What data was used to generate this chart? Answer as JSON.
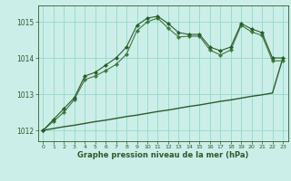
{
  "title": "Graphe pression niveau de la mer (hPa)",
  "bg_color": "#cceee8",
  "grid_color": "#99ddcc",
  "line_color_dark": "#2d5a2d",
  "line_color_mid": "#3a7a3a",
  "line_color_light": "#4a9a4a",
  "xlim": [
    -0.5,
    23.5
  ],
  "ylim": [
    1011.7,
    1015.45
  ],
  "yticks": [
    1012,
    1013,
    1014,
    1015
  ],
  "xticks": [
    0,
    1,
    2,
    3,
    4,
    5,
    6,
    7,
    8,
    9,
    10,
    11,
    12,
    13,
    14,
    15,
    16,
    17,
    18,
    19,
    20,
    21,
    22,
    23
  ],
  "series1": [
    1012.0,
    1012.3,
    1012.6,
    1012.9,
    1013.5,
    1013.6,
    1013.8,
    1014.0,
    1014.3,
    1014.9,
    1015.1,
    1015.15,
    1014.95,
    1014.7,
    1014.65,
    1014.65,
    1014.3,
    1014.2,
    1014.3,
    1014.95,
    1014.8,
    1014.7,
    1014.0,
    1014.0
  ],
  "series2": [
    1012.0,
    1012.25,
    1012.5,
    1012.85,
    1013.4,
    1013.5,
    1013.65,
    1013.82,
    1014.1,
    1014.75,
    1015.0,
    1015.1,
    1014.82,
    1014.58,
    1014.6,
    1014.6,
    1014.22,
    1014.08,
    1014.22,
    1014.9,
    1014.72,
    1014.62,
    1013.92,
    1013.92
  ],
  "series_linear": [
    1012.0,
    1012.05,
    1012.1,
    1012.14,
    1012.19,
    1012.24,
    1012.28,
    1012.33,
    1012.38,
    1012.42,
    1012.47,
    1012.52,
    1012.56,
    1012.61,
    1012.66,
    1012.7,
    1012.75,
    1012.8,
    1012.84,
    1012.89,
    1012.94,
    1012.98,
    1013.03,
    1014.0
  ],
  "markersize": 2.2,
  "linewidth_main": 0.8,
  "linewidth_linear": 1.0
}
